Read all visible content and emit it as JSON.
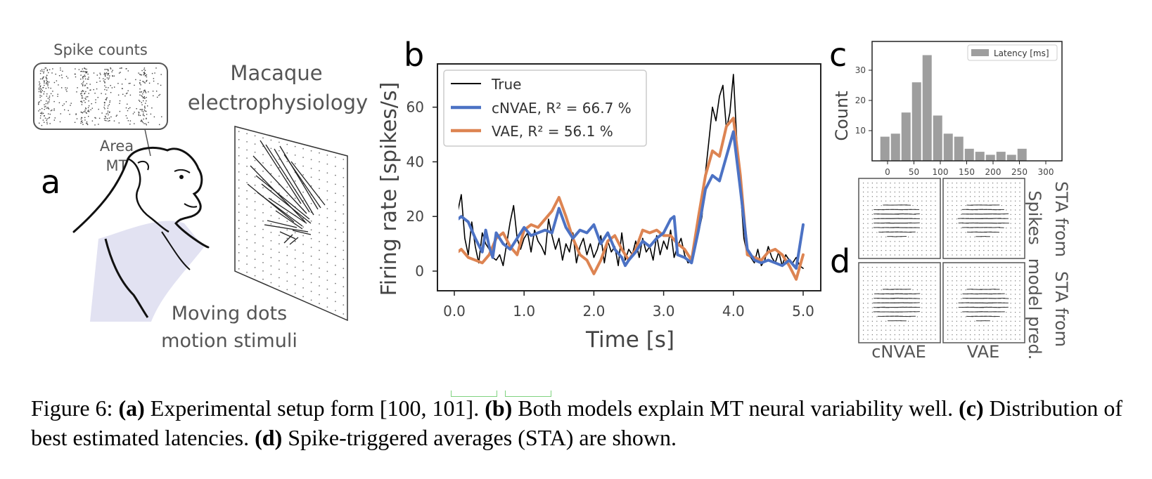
{
  "panel_a": {
    "label": "a",
    "spike_counts_label": "Spike counts",
    "area_label_1": "Area",
    "area_label_2": "MT",
    "title_line1": "Macaque",
    "title_line2": "electrophysiology",
    "stimuli_line1": "Moving dots",
    "stimuli_line2": "motion stimuli"
  },
  "panel_b": {
    "label": "b",
    "legend": [
      "True",
      "cNVAE, R² = 66.7 %",
      "VAE, R² = 56.1 %"
    ],
    "xlabel": "Time [s]",
    "ylabel": "Firing rate [spikes/s]"
  },
  "panel_c": {
    "label": "c",
    "legend": "Latency [ms]",
    "ylabel": "Count"
  },
  "panel_d": {
    "label": "d",
    "row1_label_a": "STA from",
    "row1_label_b": "Spikes",
    "row2_label_a": "STA from",
    "row2_label_b": "model pred.",
    "col1": "cNVAE",
    "col2": "VAE"
  },
  "caption": {
    "prefix": "Figure 6: ",
    "a_tag": "(a)",
    "a_text": " Experimental setup form [100, 101]. ",
    "b_tag": "(b)",
    "b_text": " Both models explain MT neural variability well. ",
    "c_tag": "(c)",
    "c_text": " Distribution of best estimated latencies. ",
    "d_tag": "(d)",
    "d_text": " Spike-triggered averages (STA) are shown."
  },
  "colors": {
    "true": "#000000",
    "cnvae": "#4c72c4",
    "vae": "#dd8452",
    "hist": "#9e9e9e"
  },
  "chart_data": [
    {
      "type": "line",
      "panel": "b",
      "xlabel": "Time [s]",
      "ylabel": "Firing rate [spikes/s]",
      "xlim": [
        -0.05,
        5.2
      ],
      "ylim": [
        -7,
        76
      ],
      "xticks": [
        "0.0",
        "1.0",
        "2.0",
        "3.0",
        "4.0",
        "5.0"
      ],
      "yticks": [
        "0",
        "20",
        "40",
        "60"
      ],
      "series": [
        {
          "name": "True",
          "x": [
            0.0,
            0.05,
            0.1,
            0.15,
            0.2,
            0.25,
            0.3,
            0.35,
            0.4,
            0.45,
            0.5,
            0.55,
            0.6,
            0.65,
            0.7,
            0.75,
            0.8,
            0.85,
            0.9,
            0.95,
            1.0,
            1.05,
            1.1,
            1.15,
            1.2,
            1.25,
            1.3,
            1.35,
            1.4,
            1.45,
            1.5,
            1.55,
            1.6,
            1.65,
            1.7,
            1.75,
            1.8,
            1.85,
            1.9,
            1.95,
            2.0,
            2.05,
            2.1,
            2.15,
            2.2,
            2.25,
            2.3,
            2.35,
            2.4,
            2.45,
            2.5,
            2.55,
            2.6,
            2.65,
            2.7,
            2.75,
            2.8,
            2.85,
            2.9,
            2.95,
            3.0,
            3.05,
            3.1,
            3.15,
            3.2,
            3.25,
            3.3,
            3.35,
            3.4,
            3.45,
            3.5,
            3.55,
            3.6,
            3.65,
            3.7,
            3.75,
            3.8,
            3.85,
            3.9,
            3.95,
            4.0,
            4.05,
            4.1,
            4.15,
            4.2,
            4.25,
            4.3,
            4.35,
            4.4,
            4.45,
            4.5,
            4.55,
            4.6,
            4.65,
            4.7,
            4.75,
            4.8,
            4.85,
            4.9,
            4.95,
            5.0
          ],
          "y": [
            4,
            22,
            28,
            12,
            6,
            18,
            9,
            3,
            14,
            10,
            8,
            5,
            4,
            6,
            2,
            10,
            18,
            24,
            12,
            8,
            12,
            14,
            7,
            15,
            11,
            9,
            6,
            19,
            13,
            8,
            12,
            4,
            10,
            7,
            14,
            3,
            9,
            12,
            6,
            10,
            5,
            8,
            13,
            3,
            11,
            7,
            9,
            2,
            14,
            4,
            8,
            6,
            11,
            5,
            12,
            7,
            9,
            4,
            13,
            6,
            11,
            8,
            15,
            5,
            9,
            12,
            6,
            3,
            4,
            8,
            14,
            20,
            36,
            48,
            60,
            55,
            64,
            68,
            52,
            58,
            72,
            47,
            30,
            12,
            6,
            5,
            3,
            8,
            2,
            4,
            9,
            5,
            3,
            7,
            2,
            6,
            4,
            3,
            5,
            2,
            1
          ]
        },
        {
          "name": "cNVAE, R² = 66.7 %",
          "x": [
            0.0,
            0.1,
            0.2,
            0.3,
            0.4,
            0.45,
            0.5,
            0.55,
            0.6,
            0.7,
            0.8,
            0.9,
            1.0,
            1.1,
            1.2,
            1.3,
            1.4,
            1.5,
            1.6,
            1.7,
            1.8,
            1.9,
            2.0,
            2.1,
            2.2,
            2.3,
            2.4,
            2.45,
            2.5,
            2.6,
            2.7,
            2.8,
            2.9,
            3.0,
            3.1,
            3.15,
            3.2,
            3.3,
            3.4,
            3.5,
            3.6,
            3.7,
            3.8,
            3.9,
            4.0,
            4.1,
            4.2,
            4.3,
            4.4,
            4.5,
            4.6,
            4.7,
            4.8,
            4.9,
            5.0
          ],
          "y": [
            18,
            20,
            18,
            12,
            7,
            15,
            9,
            5,
            14,
            10,
            8,
            12,
            16,
            13,
            14,
            15,
            14,
            23,
            16,
            12,
            15,
            14,
            17,
            10,
            14,
            8,
            5,
            2,
            4,
            7,
            11,
            9,
            12,
            14,
            19,
            20,
            6,
            5,
            3,
            15,
            30,
            35,
            33,
            42,
            51,
            30,
            8,
            4,
            3,
            4,
            3,
            2,
            4,
            1,
            17
          ]
        },
        {
          "name": "VAE, R² = 56.1 %",
          "x": [
            0.0,
            0.1,
            0.2,
            0.3,
            0.4,
            0.5,
            0.6,
            0.7,
            0.8,
            0.9,
            1.0,
            1.1,
            1.2,
            1.3,
            1.4,
            1.5,
            1.6,
            1.7,
            1.8,
            1.9,
            2.0,
            2.1,
            2.2,
            2.3,
            2.4,
            2.5,
            2.6,
            2.7,
            2.8,
            2.9,
            3.0,
            3.1,
            3.2,
            3.3,
            3.4,
            3.5,
            3.6,
            3.7,
            3.8,
            3.9,
            4.0,
            4.1,
            4.2,
            4.3,
            4.4,
            4.5,
            4.6,
            4.7,
            4.8,
            4.9,
            5.0
          ],
          "y": [
            6,
            8,
            5,
            4,
            3,
            6,
            12,
            14,
            9,
            6,
            15,
            17,
            16,
            19,
            22,
            27,
            20,
            12,
            6,
            4,
            -1,
            4,
            11,
            13,
            8,
            4,
            8,
            15,
            14,
            15,
            13,
            13,
            10,
            8,
            4,
            20,
            35,
            44,
            42,
            53,
            56,
            35,
            6,
            5,
            4,
            7,
            8,
            6,
            2,
            -3,
            6
          ]
        }
      ]
    },
    {
      "type": "bar",
      "panel": "c",
      "ylabel": "Count",
      "xticks": [
        "0",
        "50",
        "100",
        "150",
        "200",
        "250",
        "300"
      ],
      "yticks": [
        "10",
        "20",
        "30"
      ],
      "bin_starts": [
        -15,
        5,
        25,
        45,
        65,
        85,
        105,
        125,
        145,
        165,
        185,
        205,
        225,
        245,
        265,
        285
      ],
      "bin_width": 20,
      "values": [
        8,
        9,
        16,
        26,
        35,
        15,
        9,
        8,
        4,
        3,
        2,
        3,
        2,
        4,
        0,
        0
      ],
      "series_name": "Latency [ms]",
      "xlim": [
        -25,
        310
      ],
      "ylim": [
        0,
        37
      ]
    }
  ]
}
